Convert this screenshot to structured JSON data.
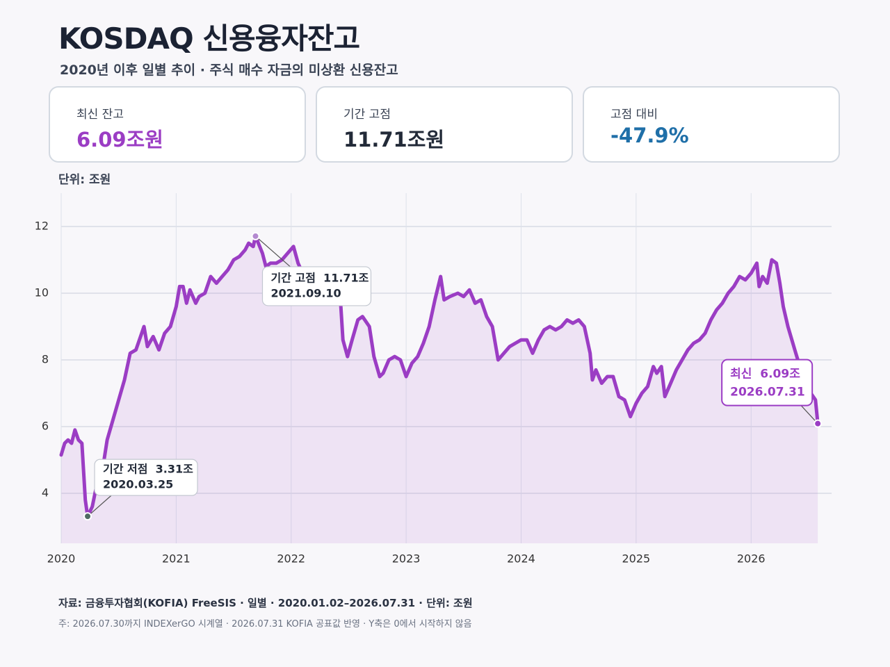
{
  "title": "KOSDAQ 신용융자잔고",
  "subtitle": "2020년 이후 일별 추이 · 주식 매수 자금의 미상환 신용잔고",
  "kpis": [
    {
      "label": "최신 잔고",
      "value": "6.09조원"
    },
    {
      "label": "기간 고점",
      "value": "11.71조원"
    },
    {
      "label": "고점 대비",
      "value": "-47.9%"
    }
  ],
  "unit": "단위: 조원",
  "chart_data": {
    "type": "line",
    "color": "#9b3dc4",
    "area": true,
    "grid": true,
    "x": [
      2020.0,
      2020.03,
      2020.06,
      2020.09,
      2020.12,
      2020.15,
      2020.18,
      2020.21,
      2020.23,
      2020.27,
      2020.3,
      2020.35,
      2020.4,
      2020.45,
      2020.5,
      2020.55,
      2020.6,
      2020.65,
      2020.7,
      2020.72,
      2020.75,
      2020.8,
      2020.85,
      2020.9,
      2020.95,
      2021.0,
      2021.03,
      2021.06,
      2021.09,
      2021.12,
      2021.17,
      2021.2,
      2021.25,
      2021.3,
      2021.35,
      2021.4,
      2021.45,
      2021.5,
      2021.55,
      2021.6,
      2021.63,
      2021.67,
      2021.69,
      2021.75,
      2021.78,
      2021.82,
      2021.87,
      2021.92,
      2021.97,
      2022.02,
      2022.06,
      2022.1,
      2022.2,
      2022.3,
      2022.4,
      2022.43,
      2022.45,
      2022.49,
      2022.53,
      2022.58,
      2022.62,
      2022.68,
      2022.72,
      2022.77,
      2022.8,
      2022.85,
      2022.9,
      2022.95,
      2023.0,
      2023.05,
      2023.1,
      2023.15,
      2023.2,
      2023.25,
      2023.3,
      2023.33,
      2023.38,
      2023.45,
      2023.5,
      2023.55,
      2023.6,
      2023.65,
      2023.7,
      2023.75,
      2023.8,
      2023.85,
      2023.9,
      2023.95,
      2024.0,
      2024.05,
      2024.1,
      2024.15,
      2024.2,
      2024.25,
      2024.3,
      2024.35,
      2024.4,
      2024.45,
      2024.5,
      2024.55,
      2024.6,
      2024.62,
      2024.65,
      2024.7,
      2024.75,
      2024.8,
      2024.85,
      2024.9,
      2024.95,
      2025.0,
      2025.05,
      2025.1,
      2025.15,
      2025.18,
      2025.22,
      2025.25,
      2025.3,
      2025.35,
      2025.4,
      2025.45,
      2025.5,
      2025.55,
      2025.6,
      2025.65,
      2025.7,
      2025.75,
      2025.8,
      2025.85,
      2025.9,
      2025.95,
      2026.0,
      2026.05,
      2026.07,
      2026.1,
      2026.14,
      2026.18,
      2026.22,
      2026.25,
      2026.28,
      2026.32,
      2026.38,
      2026.45,
      2026.52,
      2026.56,
      2026.58
    ],
    "values": [
      5.15,
      5.5,
      5.6,
      5.5,
      5.9,
      5.6,
      5.5,
      3.8,
      3.31,
      3.6,
      4.1,
      4.5,
      5.6,
      6.2,
      6.8,
      7.4,
      8.2,
      8.3,
      8.8,
      9.0,
      8.4,
      8.7,
      8.3,
      8.8,
      9.0,
      9.6,
      10.2,
      10.2,
      9.7,
      10.1,
      9.7,
      9.9,
      10.0,
      10.5,
      10.3,
      10.5,
      10.7,
      11.0,
      11.1,
      11.3,
      11.5,
      11.4,
      11.71,
      11.2,
      10.8,
      10.9,
      10.9,
      11.0,
      11.2,
      11.4,
      10.9,
      10.6,
      10.4,
      10.3,
      10.0,
      9.7,
      8.6,
      8.1,
      8.6,
      9.2,
      9.3,
      9.0,
      8.1,
      7.5,
      7.6,
      8.0,
      8.1,
      8.0,
      7.5,
      7.9,
      8.1,
      8.5,
      9.0,
      9.8,
      10.5,
      9.8,
      9.9,
      10.0,
      9.9,
      10.1,
      9.7,
      9.8,
      9.3,
      9.0,
      8.0,
      8.2,
      8.4,
      8.5,
      8.6,
      8.6,
      8.2,
      8.6,
      8.9,
      9.0,
      8.9,
      9.0,
      9.2,
      9.1,
      9.2,
      9.0,
      8.2,
      7.4,
      7.7,
      7.3,
      7.5,
      7.5,
      6.9,
      6.8,
      6.3,
      6.7,
      7.0,
      7.2,
      7.8,
      7.6,
      7.8,
      6.9,
      7.3,
      7.7,
      8.0,
      8.3,
      8.5,
      8.6,
      8.8,
      9.2,
      9.5,
      9.7,
      10.0,
      10.2,
      10.5,
      10.4,
      10.6,
      10.9,
      10.2,
      10.5,
      10.3,
      11.0,
      10.9,
      10.3,
      9.6,
      9.0,
      8.3,
      7.5,
      7.0,
      6.8,
      6.09
    ],
    "xlim": [
      2020,
      2026.7
    ],
    "xticks": [
      2020,
      2021,
      2022,
      2023,
      2024,
      2025,
      2026
    ],
    "ylim": [
      2.5,
      13
    ],
    "yticks": [
      4,
      6,
      8,
      10,
      12
    ],
    "annotations": [
      {
        "label": "기간 저점  3.31조",
        "date": "2020.03.25",
        "x": 2020.23,
        "y": 3.31
      },
      {
        "label": "기간 고점  11.71조",
        "date": "2021.09.10",
        "x": 2021.69,
        "y": 11.71
      },
      {
        "label": "최신  6.09조",
        "date": "2026.07.31",
        "x": 2026.58,
        "y": 6.09
      }
    ]
  },
  "source": "자료: 금융투자협회(KOFIA) FreeSIS · 일별 · 2020.01.02–2026.07.31 · 단위: 조원",
  "note": "주: 2026.07.30까지 INDEXerGO 시계열 · 2026.07.31 KOFIA 공표값 반영 · Y축은 0에서 시작하지 않음"
}
